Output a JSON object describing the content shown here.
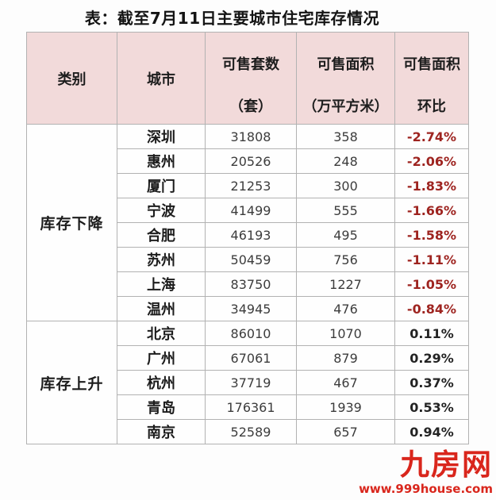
{
  "title": "表：截至7月11日主要城市住宅库存情况",
  "colors": {
    "header_bg": "#f2dada",
    "negative_red": "#9e2420",
    "positive_black": "#232323",
    "brand_red": "#d9261c",
    "border_gray": "#b2b2b2"
  },
  "table": {
    "header": [
      {
        "line1": "类别",
        "line2": ""
      },
      {
        "line1": "城市",
        "line2": ""
      },
      {
        "line1": "可售套数",
        "line2": "（套）"
      },
      {
        "line1": "可售面积",
        "line2": "（万平方米）"
      },
      {
        "line1": "可售面积",
        "line2": "环比"
      }
    ],
    "groups": [
      {
        "label": "库存下降",
        "rows": [
          {
            "city": "深圳",
            "units": "31808",
            "area": "358",
            "change": "-2.74%"
          },
          {
            "city": "惠州",
            "units": "20526",
            "area": "248",
            "change": "-2.06%"
          },
          {
            "city": "厦门",
            "units": "21253",
            "area": "300",
            "change": "-1.83%"
          },
          {
            "city": "宁波",
            "units": "41499",
            "area": "555",
            "change": "-1.66%"
          },
          {
            "city": "合肥",
            "units": "46193",
            "area": "495",
            "change": "-1.58%"
          },
          {
            "city": "苏州",
            "units": "50459",
            "area": "756",
            "change": "-1.11%"
          },
          {
            "city": "上海",
            "units": "83750",
            "area": "1227",
            "change": "-1.05%"
          },
          {
            "city": "温州",
            "units": "34945",
            "area": "476",
            "change": "-0.84%"
          }
        ]
      },
      {
        "label": "库存上升",
        "rows": [
          {
            "city": "北京",
            "units": "86010",
            "area": "1070",
            "change": "0.11%"
          },
          {
            "city": "广州",
            "units": "67061",
            "area": "879",
            "change": "0.29%"
          },
          {
            "city": "杭州",
            "units": "37719",
            "area": "467",
            "change": "0.37%"
          },
          {
            "city": "青岛",
            "units": "176361",
            "area": "1939",
            "change": "0.53%"
          },
          {
            "city": "南京",
            "units": "52589",
            "area": "657",
            "change": "0.94%"
          }
        ]
      }
    ]
  },
  "watermark": {
    "logo": "九房网",
    "url": "www.999house.com"
  },
  "chart_data": {
    "type": "table",
    "title": "表：截至7月11日主要城市住宅库存情况",
    "columns": [
      "类别",
      "城市",
      "可售套数（套）",
      "可售面积（万平方米）",
      "可售面积环比"
    ],
    "rows": [
      [
        "库存下降",
        "深圳",
        31808,
        358,
        "-2.74%"
      ],
      [
        "库存下降",
        "惠州",
        20526,
        248,
        "-2.06%"
      ],
      [
        "库存下降",
        "厦门",
        21253,
        300,
        "-1.83%"
      ],
      [
        "库存下降",
        "宁波",
        41499,
        555,
        "-1.66%"
      ],
      [
        "库存下降",
        "合肥",
        46193,
        495,
        "-1.58%"
      ],
      [
        "库存下降",
        "苏州",
        50459,
        756,
        "-1.11%"
      ],
      [
        "库存下降",
        "上海",
        83750,
        1227,
        "-1.05%"
      ],
      [
        "库存下降",
        "温州",
        34945,
        476,
        "-0.84%"
      ],
      [
        "库存上升",
        "北京",
        86010,
        1070,
        "0.11%"
      ],
      [
        "库存上升",
        "广州",
        67061,
        879,
        "0.29%"
      ],
      [
        "库存上升",
        "杭州",
        37719,
        467,
        "0.37%"
      ],
      [
        "库存上升",
        "青岛",
        176361,
        1939,
        "0.53%"
      ],
      [
        "库存上升",
        "南京",
        52589,
        657,
        "0.94%"
      ]
    ]
  }
}
